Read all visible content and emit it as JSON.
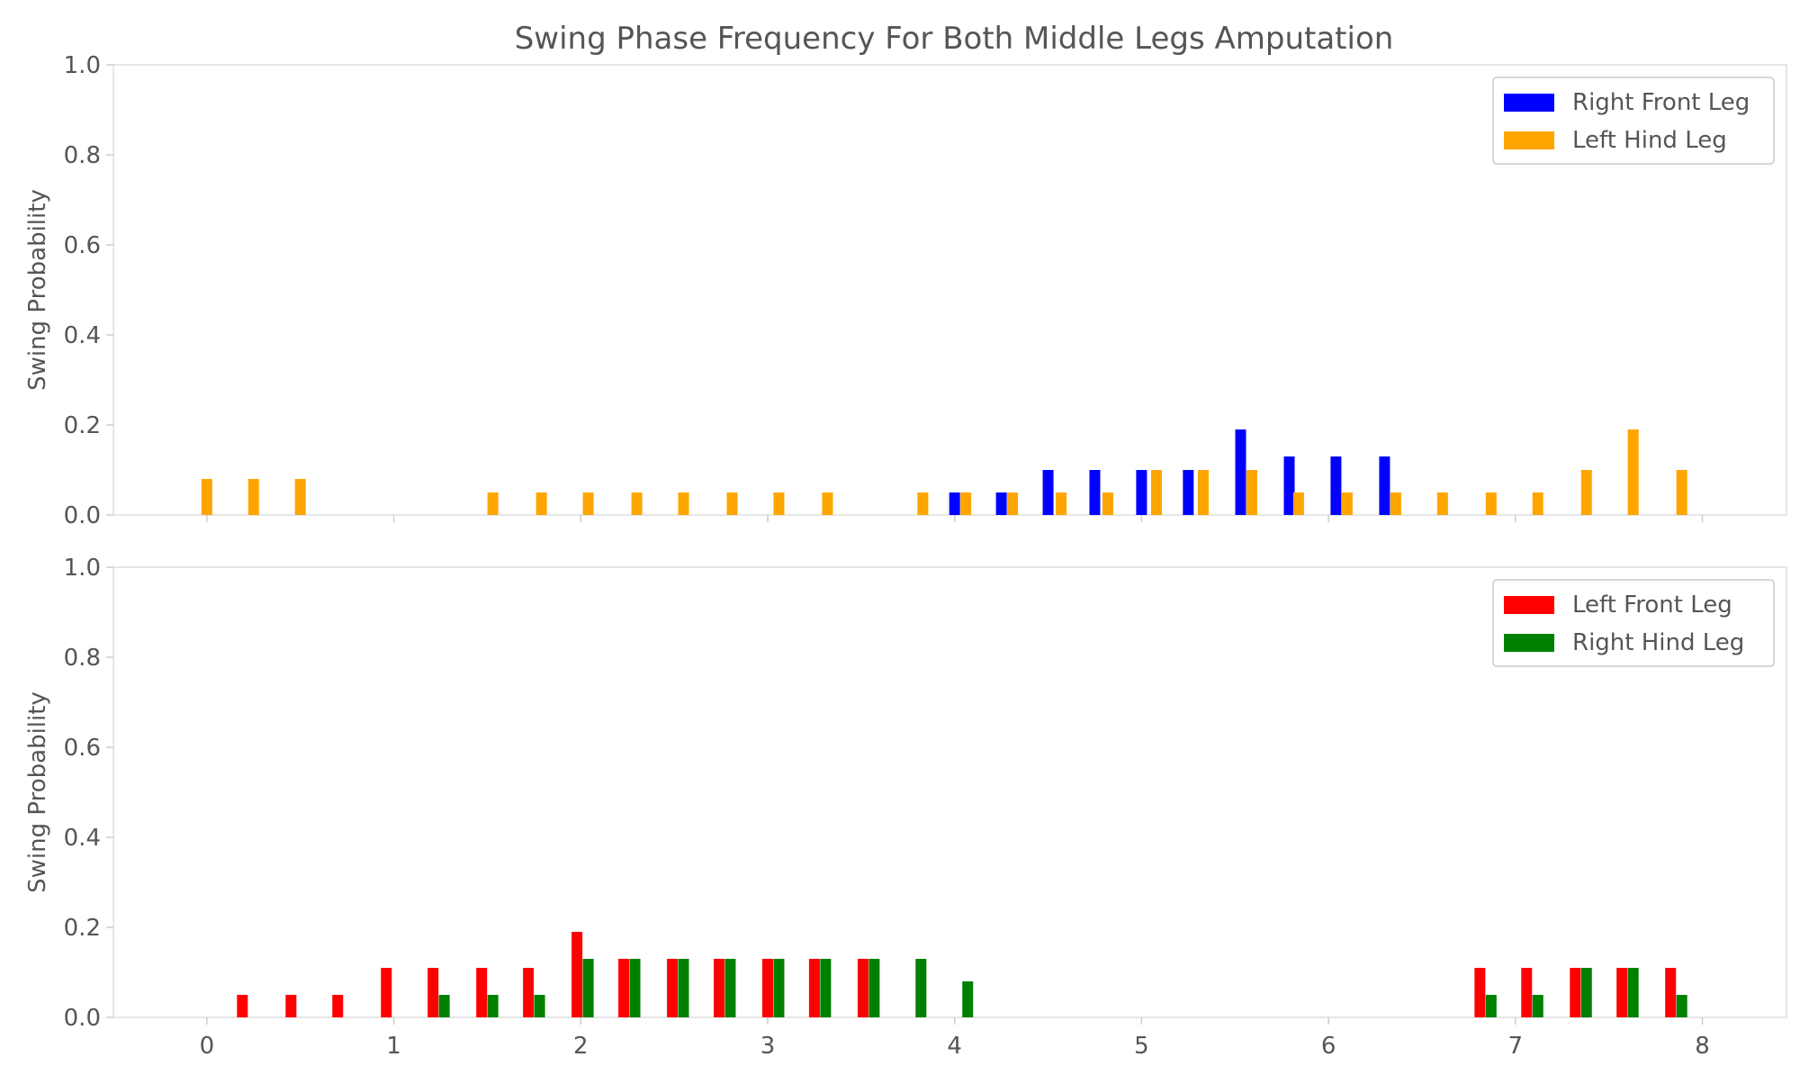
{
  "chart_data": {
    "title": "Swing Phase Frequency For Both Middle Legs Amputation",
    "type": "bar",
    "xlim": [
      -0.5,
      8.45
    ],
    "xticks": [
      0,
      1,
      2,
      3,
      4,
      5,
      6,
      7,
      8
    ],
    "subplots": [
      {
        "ylabel": "Swing Probability",
        "ylim": [
          0,
          1.0
        ],
        "yticks": [
          "0.0",
          "0.2",
          "0.4",
          "0.6",
          "0.8",
          "1.0"
        ],
        "legend_position": "top-right",
        "series": [
          {
            "name": "Right Front Leg",
            "color": "#0000ff",
            "x": [
              4.0,
              4.25,
              4.5,
              4.75,
              5.0,
              5.25,
              5.53,
              5.79,
              6.04,
              6.3
            ],
            "values": [
              0.05,
              0.05,
              0.1,
              0.1,
              0.1,
              0.1,
              0.19,
              0.13,
              0.13,
              0.13
            ]
          },
          {
            "name": "Left Hind Leg",
            "color": "#ffa500",
            "x": [
              0.0,
              0.25,
              0.5,
              1.53,
              1.79,
              2.04,
              2.3,
              2.55,
              2.81,
              3.06,
              3.32,
              3.83,
              4.06,
              4.31,
              4.57,
              4.82,
              5.08,
              5.33,
              5.59,
              5.84,
              6.1,
              6.36,
              6.61,
              6.87,
              7.12,
              7.38,
              7.63,
              7.89
            ],
            "values": [
              0.08,
              0.08,
              0.08,
              0.05,
              0.05,
              0.05,
              0.05,
              0.05,
              0.05,
              0.05,
              0.05,
              0.05,
              0.05,
              0.05,
              0.05,
              0.05,
              0.1,
              0.1,
              0.1,
              0.05,
              0.05,
              0.05,
              0.05,
              0.05,
              0.05,
              0.1,
              0.19,
              0.1
            ]
          }
        ]
      },
      {
        "ylabel": "Swing Probability",
        "ylim": [
          0,
          1.0
        ],
        "yticks": [
          "0.0",
          "0.2",
          "0.4",
          "0.6",
          "0.8",
          "1.0"
        ],
        "legend_position": "top-right",
        "series": [
          {
            "name": "Left Front Leg",
            "color": "#ff0000",
            "x": [
              0.19,
              0.45,
              0.7,
              0.96,
              1.21,
              1.47,
              1.72,
              1.98,
              2.23,
              2.49,
              2.74,
              3.0,
              3.25,
              3.51,
              6.81,
              7.06,
              7.32,
              7.57,
              7.83
            ],
            "values": [
              0.05,
              0.05,
              0.05,
              0.11,
              0.11,
              0.11,
              0.11,
              0.19,
              0.13,
              0.13,
              0.13,
              0.13,
              0.13,
              0.13,
              0.11,
              0.11,
              0.11,
              0.11,
              0.11
            ]
          },
          {
            "name": "Right Hind Leg",
            "color": "#008000",
            "x": [
              1.27,
              1.53,
              1.78,
              2.04,
              2.29,
              2.55,
              2.8,
              3.06,
              3.31,
              3.57,
              3.82,
              4.07,
              6.87,
              7.12,
              7.38,
              7.63,
              7.89
            ],
            "values": [
              0.05,
              0.05,
              0.05,
              0.13,
              0.13,
              0.13,
              0.13,
              0.13,
              0.13,
              0.13,
              0.13,
              0.08,
              0.05,
              0.05,
              0.11,
              0.11,
              0.05
            ]
          }
        ]
      }
    ]
  }
}
